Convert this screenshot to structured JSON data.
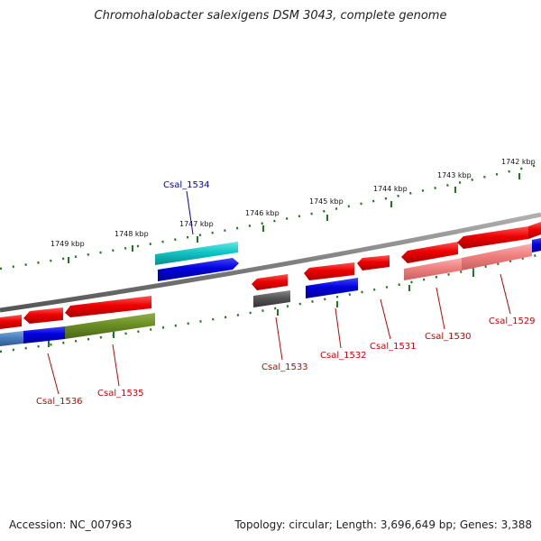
{
  "title": "Chromohalobacter salexigens DSM 3043, complete genome",
  "footer": {
    "accession": "Accession: NC_007963",
    "summary": "Topology: circular; Length: 3,696,649 bp; Genes: 3,388"
  },
  "ruler_labels": [
    "1742 kbp",
    "1743 kbp",
    "1744 kbp",
    "1745 kbp",
    "1746 kbp",
    "1747 kbp",
    "1748 kbp",
    "1749 kbp"
  ],
  "gene_labels": {
    "g1534": "Csal_1534",
    "g1536": "Csal_1536",
    "g1535": "Csal_1535",
    "g1533": "Csal_1533",
    "g1532": "Csal_1532",
    "g1531": "Csal_1531",
    "g1530": "Csal_1530",
    "g1529": "Csal_1529"
  },
  "colors": {
    "red": "#ee0000",
    "blue": "#0000dd",
    "cyan": "#11c6c6",
    "olive": "#6b8e23",
    "gray": "#555555",
    "pink": "#f08080",
    "steelblue": "#4a7fbf",
    "tick_green": "#1a7a1a",
    "backbone": "#808080"
  }
}
